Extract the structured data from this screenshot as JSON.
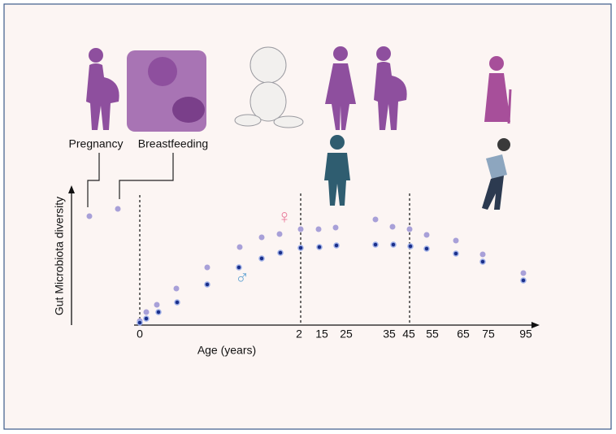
{
  "stages": {
    "pregnancy": "Pregnancy",
    "breastfeeding": "Breastfeeding"
  },
  "y_axis_label": "Gut Microbiota diversity",
  "x_axis_label": "Age (years)",
  "x_ticks": [
    "0",
    "2",
    "15",
    "25",
    "35",
    "45",
    "55",
    "65",
    "75",
    "95"
  ],
  "symbols": {
    "female": "♀",
    "male": "♂"
  }
}
